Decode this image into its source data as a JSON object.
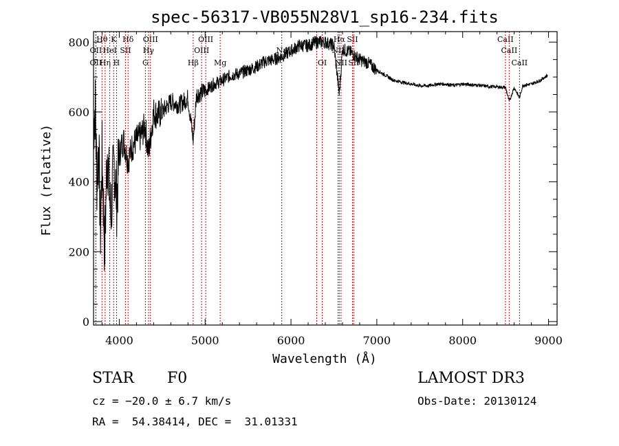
{
  "chart_data": {
    "type": "line",
    "title": "spec-56317-VB055N28V1_sp16-234.fits",
    "xlabel": "Wavelength (Å)",
    "ylabel": "Flux (relative)",
    "xlim": [
      3700,
      9100
    ],
    "ylim": [
      -10,
      830
    ],
    "x_ticks": [
      4000,
      5000,
      6000,
      7000,
      8000,
      9000
    ],
    "x_tick_labels": [
      "4000",
      "5000",
      "6000",
      "7000",
      "8000",
      "9000"
    ],
    "y_ticks": [
      0,
      200,
      400,
      600,
      800
    ],
    "y_tick_labels": [
      "0",
      "200",
      "400",
      "600",
      "800"
    ],
    "grid": false,
    "line_color": "#000000",
    "marker_color": "#cc0000",
    "series": [
      {
        "name": "flux",
        "x": [
          3700,
          3720,
          3740,
          3760,
          3780,
          3800,
          3830,
          3860,
          3900,
          3940,
          3970,
          4000,
          4050,
          4100,
          4150,
          4200,
          4250,
          4300,
          4340,
          4400,
          4450,
          4500,
          4600,
          4700,
          4800,
          4861,
          4900,
          5000,
          5100,
          5200,
          5300,
          5400,
          5500,
          5600,
          5700,
          5800,
          5900,
          6000,
          6100,
          6200,
          6300,
          6400,
          6500,
          6563,
          6600,
          6700,
          6800,
          6900,
          7000,
          7100,
          7200,
          7300,
          7400,
          7500,
          7600,
          7700,
          7800,
          7900,
          8000,
          8100,
          8200,
          8300,
          8400,
          8500,
          8542,
          8600,
          8662,
          8700,
          8800,
          8900,
          8960,
          8990
        ],
        "y": [
          560,
          620,
          400,
          520,
          250,
          480,
          200,
          500,
          300,
          460,
          350,
          480,
          520,
          460,
          500,
          520,
          530,
          560,
          480,
          600,
          590,
          600,
          630,
          620,
          640,
          520,
          650,
          660,
          680,
          690,
          705,
          710,
          720,
          730,
          745,
          750,
          760,
          775,
          790,
          790,
          800,
          800,
          790,
          650,
          780,
          770,
          750,
          740,
          720,
          705,
          690,
          685,
          680,
          675,
          675,
          680,
          680,
          676,
          680,
          678,
          676,
          673,
          672,
          670,
          630,
          670,
          640,
          676,
          680,
          690,
          700,
          705
        ]
      }
    ],
    "lines": [
      {
        "name": "Hθ",
        "x": 3798,
        "row": 1
      },
      {
        "name": "OII",
        "x": 3727,
        "row": 2
      },
      {
        "name": "OII",
        "x": 3727,
        "row": 3
      },
      {
        "name": "Hη",
        "x": 3835,
        "row": 3
      },
      {
        "name": "HeI",
        "x": 3889,
        "row": 2
      },
      {
        "name": "K",
        "x": 3934,
        "row": 1
      },
      {
        "name": "H",
        "x": 3968,
        "row": 3
      },
      {
        "name": "SII",
        "x": 4072,
        "row": 2
      },
      {
        "name": "Hδ",
        "x": 4102,
        "row": 1
      },
      {
        "name": "OIII",
        "x": 4363,
        "row": 1
      },
      {
        "name": "Hγ",
        "x": 4340,
        "row": 2
      },
      {
        "name": "G",
        "x": 4304,
        "row": 3
      },
      {
        "name": "Hβ",
        "x": 4861,
        "row": 3
      },
      {
        "name": "OIII",
        "x": 4959,
        "row": 2
      },
      {
        "name": "OIII",
        "x": 5007,
        "row": 1
      },
      {
        "name": "Mg",
        "x": 5175,
        "row": 3
      },
      {
        "name": "Na",
        "x": 5893,
        "row": 2
      },
      {
        "name": "OI",
        "x": 6300,
        "row": 1
      },
      {
        "name": "OI",
        "x": 6364,
        "row": 3
      },
      {
        "name": "NII",
        "x": 6548,
        "row": 2
      },
      {
        "name": "Hα",
        "x": 6563,
        "row": 1
      },
      {
        "name": "NII",
        "x": 6583,
        "row": 3
      },
      {
        "name": "SII",
        "x": 6716,
        "row": 1
      },
      {
        "name": "SII",
        "x": 6731,
        "row": 3
      },
      {
        "name": "CaII",
        "x": 8498,
        "row": 1
      },
      {
        "name": "CaII",
        "x": 8542,
        "row": 2
      },
      {
        "name": "CaII",
        "x": 8662,
        "row": 3
      }
    ]
  },
  "info": {
    "class": "STAR",
    "subclass": "F0",
    "survey": "LAMOST DR3",
    "cz": "cz = −20.0 ± 6.7 km/s",
    "obs_date": "Obs-Date: 20130124",
    "radec": "RA =  54.38414, DEC =  31.01331"
  }
}
